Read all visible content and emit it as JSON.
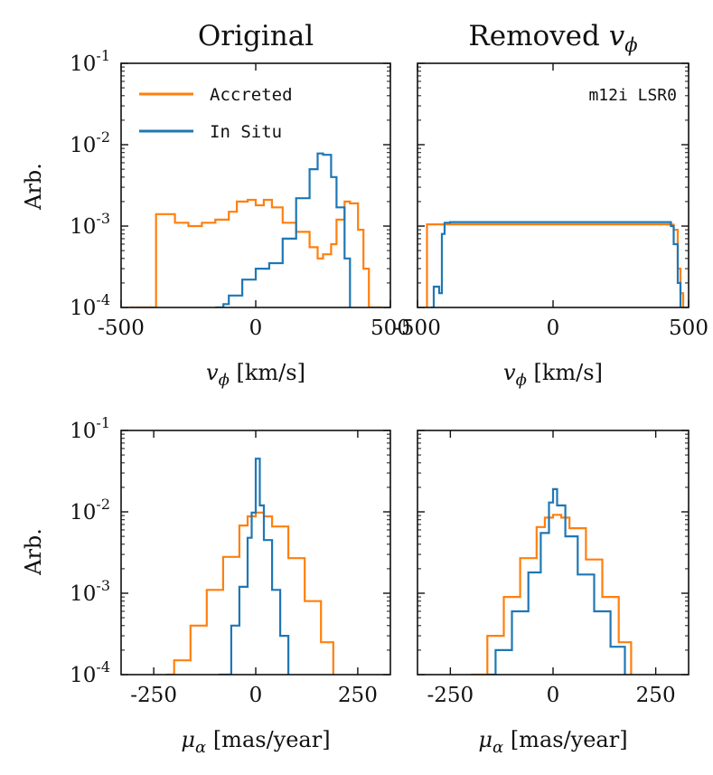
{
  "colors": {
    "accreted": "#ff7f0e",
    "insitu": "#1f77b4",
    "axis": "#111111"
  },
  "legend": {
    "accreted": "Accreted",
    "insitu": "In Situ"
  },
  "titles": {
    "left": "Original",
    "right_prefix": "Removed ",
    "right_var": "v",
    "right_sub": "ϕ"
  },
  "annotation": "m12i LSR0",
  "y_label": "Arb.",
  "y_ticks": [
    {
      "base": "10",
      "exp": "-1",
      "value": 0.1
    },
    {
      "base": "10",
      "exp": "-2",
      "value": 0.01
    },
    {
      "base": "10",
      "exp": "-3",
      "value": 0.001
    },
    {
      "base": "10",
      "exp": "-4",
      "value": 0.0001
    }
  ],
  "x_labels": {
    "vphi": {
      "var": "v",
      "sub": "ϕ",
      "unit": " [km/s]"
    },
    "mu": {
      "var": "μ",
      "sub": "α",
      "unit": " [mas/year]"
    }
  },
  "x_ticks": {
    "vphi": [
      {
        "label": "-500",
        "value": -500
      },
      {
        "label": "0",
        "value": 0
      },
      {
        "label": "500",
        "value": 500
      }
    ],
    "mu": [
      {
        "label": "-250",
        "value": -250
      },
      {
        "label": "0",
        "value": 0
      },
      {
        "label": "250",
        "value": 250
      }
    ]
  },
  "chart_data": [
    {
      "id": "orig-vphi",
      "type": "line",
      "title": "Original",
      "xlabel": "v_phi [km/s]",
      "ylabel": "Arb.",
      "xlim": [
        -500,
        500
      ],
      "ylim": [
        0.0001,
        0.1
      ],
      "yscale": "log",
      "series": [
        {
          "name": "Accreted",
          "x": [
            -470,
            -400,
            -370,
            -350,
            -300,
            -250,
            -200,
            -150,
            -100,
            -70,
            -30,
            0,
            30,
            60,
            100,
            150,
            200,
            230,
            250,
            280,
            300,
            330,
            350,
            380,
            400,
            420,
            450,
            470
          ],
          "y": [
            0.0001,
            0.0001,
            0.0014,
            0.0014,
            0.0011,
            0.001,
            0.0011,
            0.0012,
            0.0015,
            0.002,
            0.0021,
            0.0018,
            0.0021,
            0.0017,
            0.0011,
            0.00085,
            0.00055,
            0.0004,
            0.00045,
            0.0006,
            0.0012,
            0.002,
            0.0019,
            0.0009,
            0.0003,
            0.0001,
            0.0001,
            0.0001
          ]
        },
        {
          "name": "In Situ",
          "x": [
            -150,
            -120,
            -100,
            -50,
            0,
            50,
            100,
            150,
            200,
            230,
            250,
            280,
            300,
            330,
            350
          ],
          "y": [
            0.0001,
            0.00011,
            0.00014,
            0.00022,
            0.0003,
            0.00035,
            0.0007,
            0.0022,
            0.005,
            0.0078,
            0.0075,
            0.004,
            0.0017,
            0.0004,
            0.0001
          ]
        }
      ]
    },
    {
      "id": "rem-vphi",
      "type": "line",
      "title": "Removed v_phi",
      "xlabel": "v_phi [km/s]",
      "ylabel": "",
      "xlim": [
        -500,
        500
      ],
      "ylim": [
        0.0001,
        0.1
      ],
      "yscale": "log",
      "series": [
        {
          "name": "Accreted",
          "x": [
            -470,
            -465,
            -465,
            -400,
            -200,
            0,
            200,
            400,
            430,
            445,
            460,
            470,
            480
          ],
          "y": [
            0.0001,
            0.0001,
            0.00105,
            0.00105,
            0.00105,
            0.00105,
            0.00105,
            0.00105,
            0.00104,
            0.0009,
            0.0003,
            0.00015,
            0.0001
          ]
        },
        {
          "name": "In Situ",
          "x": [
            -450,
            -440,
            -420,
            -410,
            -400,
            -380,
            -300,
            -200,
            0,
            200,
            400,
            420,
            435,
            445,
            460,
            470
          ],
          "y": [
            0.0001,
            0.00018,
            0.00015,
            0.0008,
            0.0011,
            0.00112,
            0.00112,
            0.00112,
            0.00112,
            0.00112,
            0.00112,
            0.00112,
            0.001,
            0.0006,
            0.0002,
            0.0001
          ]
        }
      ]
    },
    {
      "id": "orig-mu",
      "type": "line",
      "title": "",
      "xlabel": "mu_alpha [mas/year]",
      "ylabel": "Arb.",
      "xlim": [
        -330,
        330
      ],
      "ylim": [
        0.0001,
        0.1
      ],
      "yscale": "log",
      "series": [
        {
          "name": "Accreted",
          "x": [
            -220,
            -200,
            -160,
            -120,
            -80,
            -40,
            -20,
            0,
            20,
            40,
            80,
            120,
            160,
            190
          ],
          "y": [
            0.0001,
            0.00015,
            0.0004,
            0.0011,
            0.0028,
            0.0068,
            0.0088,
            0.0098,
            0.0088,
            0.0066,
            0.0027,
            0.0008,
            0.00025,
            0.0001
          ]
        },
        {
          "name": "In Situ",
          "x": [
            -90,
            -60,
            -40,
            -20,
            -10,
            0,
            10,
            20,
            40,
            60,
            80
          ],
          "y": [
            0.0001,
            0.0004,
            0.0012,
            0.0048,
            0.0098,
            0.045,
            0.012,
            0.0045,
            0.0011,
            0.0003,
            0.0001
          ]
        }
      ]
    },
    {
      "id": "rem-mu",
      "type": "line",
      "title": "",
      "xlabel": "mu_alpha [mas/year]",
      "ylabel": "",
      "xlim": [
        -330,
        330
      ],
      "ylim": [
        0.0001,
        0.1
      ],
      "yscale": "log",
      "series": [
        {
          "name": "Accreted",
          "x": [
            -200,
            -160,
            -120,
            -80,
            -40,
            -20,
            0,
            20,
            40,
            80,
            120,
            160,
            190
          ],
          "y": [
            0.0001,
            0.0003,
            0.0009,
            0.0027,
            0.0065,
            0.0085,
            0.0092,
            0.0085,
            0.0063,
            0.0026,
            0.0009,
            0.00025,
            0.0001
          ]
        },
        {
          "name": "In Situ",
          "x": [
            -160,
            -140,
            -100,
            -60,
            -30,
            -10,
            0,
            10,
            30,
            60,
            100,
            140,
            175
          ],
          "y": [
            0.0001,
            0.0002,
            0.0006,
            0.0018,
            0.0055,
            0.013,
            0.019,
            0.012,
            0.005,
            0.0017,
            0.0006,
            0.00022,
            0.0001
          ]
        }
      ]
    }
  ]
}
